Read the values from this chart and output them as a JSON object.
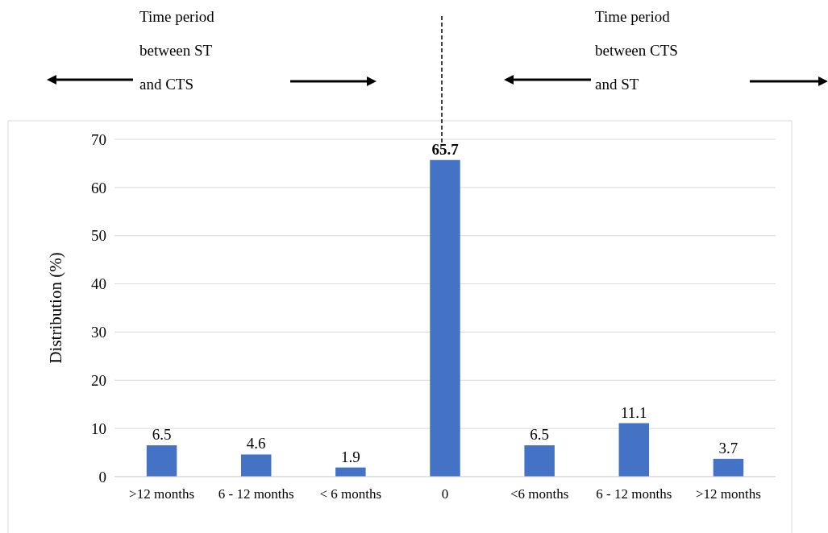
{
  "chart_data": {
    "type": "bar",
    "ylabel": "Distribution (%)",
    "categories": [
      ">12 months",
      "6 - 12 months",
      "< 6 months",
      "0",
      "<6 months",
      "6 - 12 months",
      ">12 months"
    ],
    "values": [
      6.5,
      4.6,
      1.9,
      65.7,
      6.5,
      11.1,
      3.7
    ],
    "color": "#4472c4",
    "ylim": [
      0,
      70
    ],
    "yticks": [
      0,
      10,
      20,
      30,
      40,
      50,
      60,
      70
    ],
    "grid": "y",
    "data_labels": true,
    "annotations": [
      "Time period between ST and CTS",
      "Time period between CTS and ST"
    ]
  }
}
